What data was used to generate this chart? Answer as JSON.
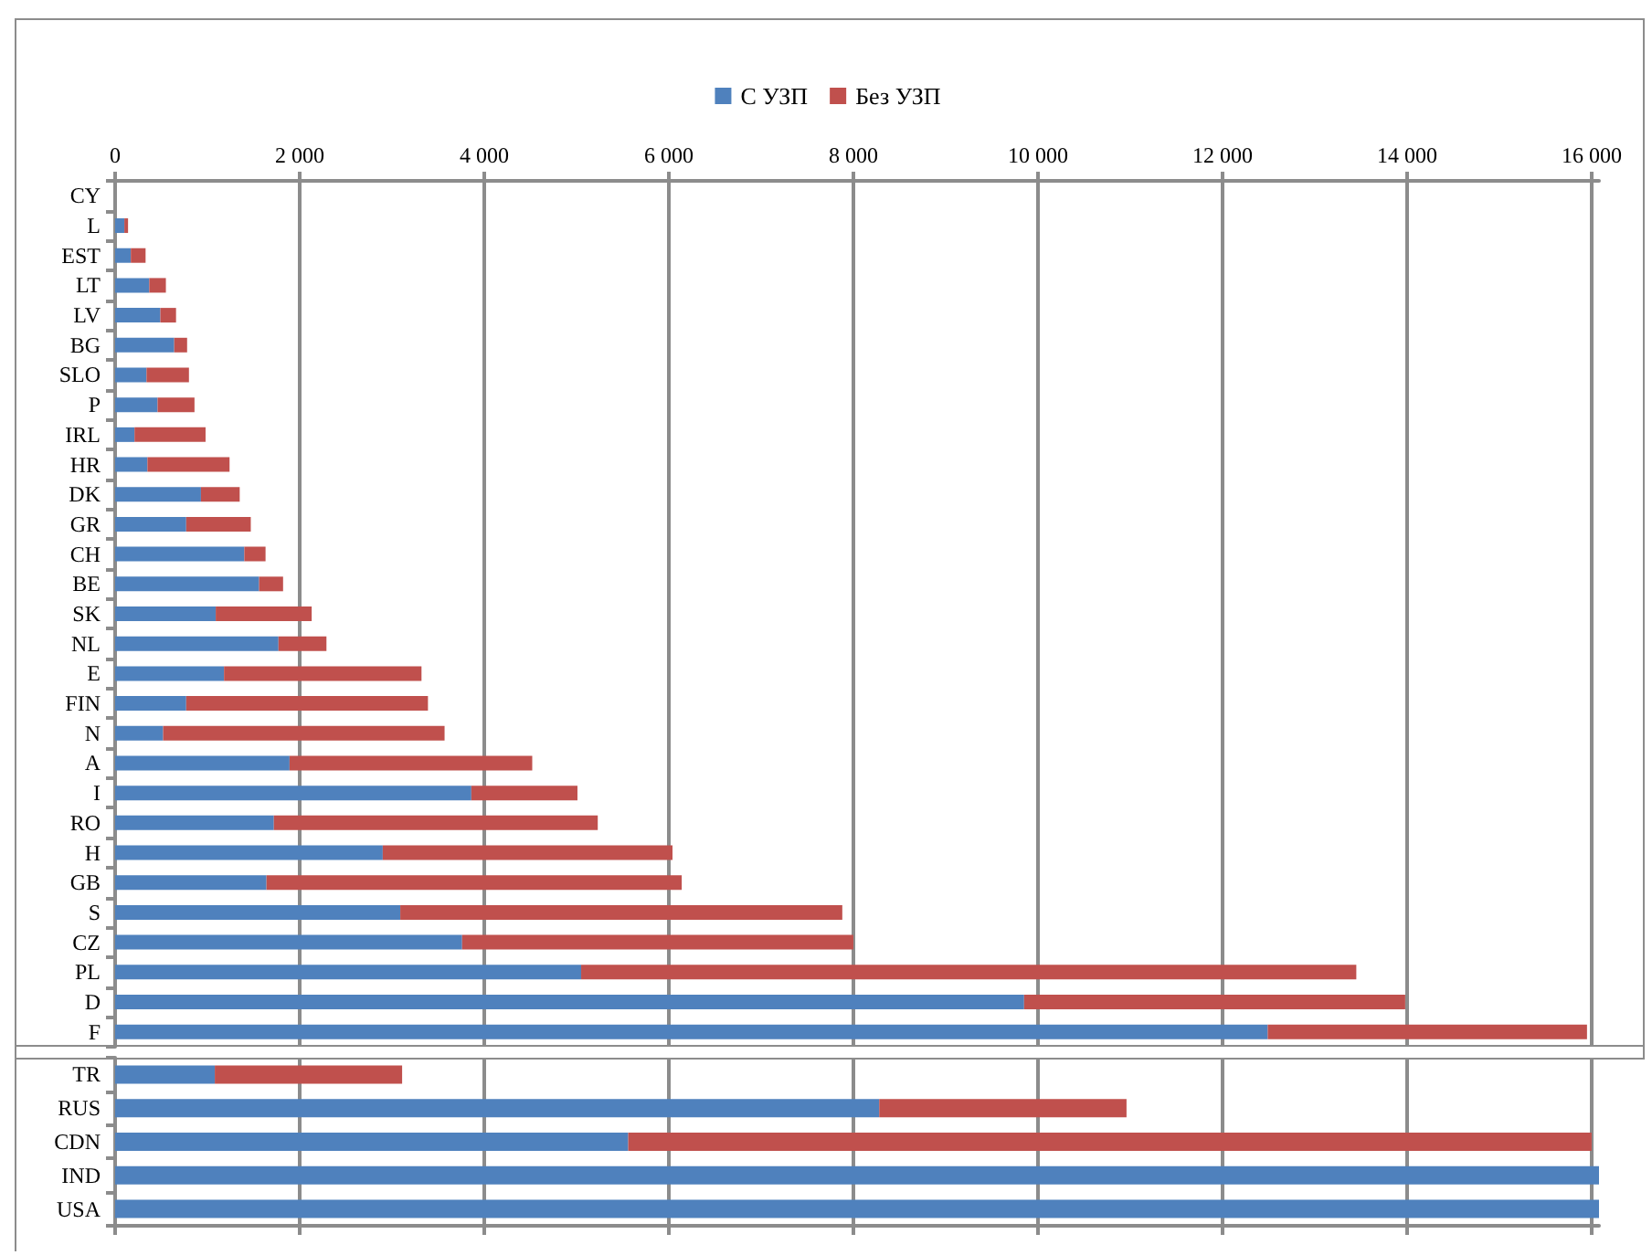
{
  "chart_data": [
    {
      "type": "bar",
      "orientation": "horizontal",
      "stacked": true,
      "legend": "top",
      "grid": "x",
      "categories": [
        "CY",
        "L",
        "EST",
        "LT",
        "LV",
        "BG",
        "SLO",
        "P",
        "IRL",
        "HR",
        "DK",
        "GR",
        "CH",
        "BE",
        "SK",
        "NL",
        "E",
        "FIN",
        "N",
        "A",
        "I",
        "RO",
        "H",
        "GB",
        "S",
        "CZ",
        "PL",
        "D",
        "F"
      ],
      "series": [
        {
          "name": "С УЗП",
          "color": "#4f81bd",
          "values": [
            0,
            100,
            170,
            370,
            490,
            640,
            340,
            460,
            210,
            350,
            930,
            770,
            1400,
            1560,
            1090,
            1770,
            1180,
            770,
            520,
            1890,
            3860,
            1720,
            2900,
            1640,
            3090,
            3760,
            5050,
            9850,
            12490
          ]
        },
        {
          "name": "Без УЗП",
          "color": "#c0504d",
          "values": [
            0,
            40,
            160,
            180,
            170,
            140,
            460,
            400,
            770,
            890,
            420,
            700,
            230,
            260,
            1040,
            520,
            2140,
            2620,
            3050,
            2630,
            1150,
            3510,
            3140,
            4500,
            4790,
            4240,
            8400,
            4130,
            3460
          ]
        }
      ],
      "xlim": [
        0,
        16080
      ],
      "xticks": [
        0,
        {
          "value": 2000,
          "label": "2 000"
        },
        {
          "value": 4000,
          "label": "4 000"
        },
        {
          "value": 6000,
          "label": "6 000"
        },
        {
          "value": 8000,
          "label": "8 000"
        },
        {
          "value": 10000,
          "label": "10 000"
        },
        {
          "value": 12000,
          "label": "12 000"
        },
        {
          "value": 14000,
          "label": "14 000"
        },
        {
          "value": 16000,
          "label": "16 000"
        }
      ]
    },
    {
      "type": "bar",
      "orientation": "horizontal",
      "stacked": true,
      "grid": "x",
      "tick_labels": "y",
      "categories": [
        "TR",
        "RUS",
        "CDN",
        "IND",
        "USA"
      ],
      "series": [
        {
          "color": "#4f81bd",
          "values": [
            1080,
            8280,
            5560,
            16080,
            16080
          ]
        },
        {
          "color": "#c0504d",
          "values": [
            2030,
            2680,
            10440,
            0,
            0
          ]
        }
      ],
      "xlim": [
        0,
        16080
      ],
      "xticks": [
        0,
        2000,
        4000,
        6000,
        8000,
        10000,
        12000,
        14000,
        16000
      ]
    }
  ]
}
